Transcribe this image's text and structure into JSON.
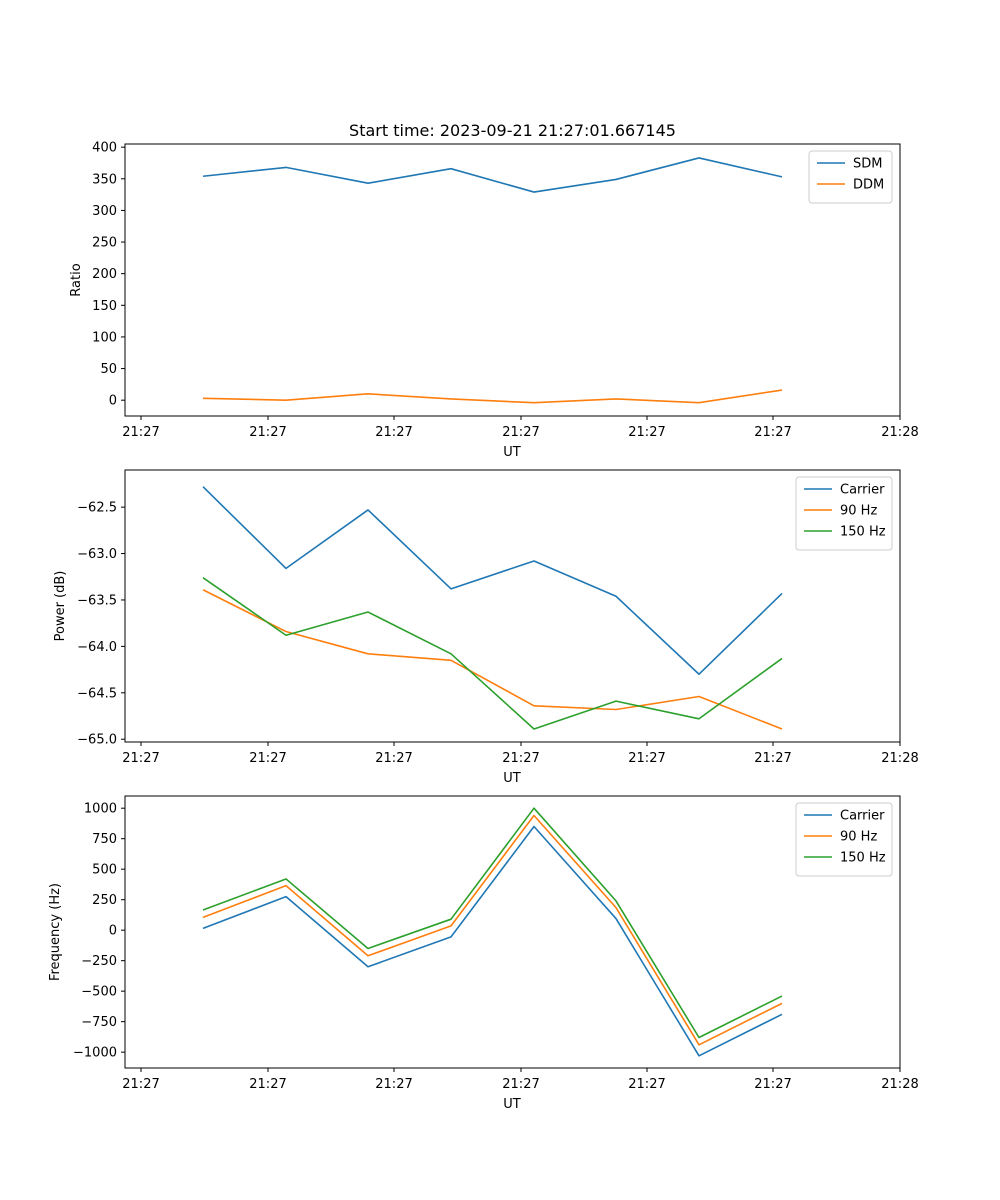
{
  "figure_title": "Start time: 2023-09-21 21:27:01.667145",
  "chart_data": [
    {
      "type": "line",
      "xlabel": "UT",
      "ylabel": "Ratio",
      "x_ticks": [
        "21:27",
        "21:27",
        "21:27",
        "21:27",
        "21:27",
        "21:27",
        "21:28"
      ],
      "y_ticks": [
        "0",
        "50",
        "100",
        "150",
        "200",
        "250",
        "300",
        "350",
        "400"
      ],
      "y_tick_values": [
        0,
        50,
        100,
        150,
        200,
        250,
        300,
        350,
        400
      ],
      "ylim": [
        -25,
        405
      ],
      "legend_position": "upper right",
      "series": [
        {
          "name": "SDM",
          "color": "#1f77b4",
          "values": [
            354,
            368,
            343,
            366,
            329,
            349,
            383,
            353
          ]
        },
        {
          "name": "DDM",
          "color": "#ff7f0e",
          "values": [
            3,
            0,
            10,
            2,
            -4,
            2,
            -4,
            16
          ]
        }
      ]
    },
    {
      "type": "line",
      "xlabel": "UT",
      "ylabel": "Power (dB)",
      "x_ticks": [
        "21:27",
        "21:27",
        "21:27",
        "21:27",
        "21:27",
        "21:27",
        "21:28"
      ],
      "y_ticks": [
        "−65.0",
        "−64.5",
        "−64.0",
        "−63.5",
        "−63.0",
        "−62.5"
      ],
      "y_tick_values": [
        -65.0,
        -64.5,
        -64.0,
        -63.5,
        -63.0,
        -62.5
      ],
      "ylim": [
        -65.03,
        -62.1
      ],
      "legend_position": "upper right",
      "series": [
        {
          "name": "Carrier",
          "color": "#1f77b4",
          "values": [
            -62.28,
            -63.16,
            -62.53,
            -63.38,
            -63.08,
            -63.46,
            -64.3,
            -63.43
          ]
        },
        {
          "name": "90 Hz",
          "color": "#ff7f0e",
          "values": [
            -63.39,
            -63.84,
            -64.08,
            -64.15,
            -64.64,
            -64.68,
            -64.54,
            -64.89
          ]
        },
        {
          "name": "150 Hz",
          "color": "#2ca02c",
          "values": [
            -63.26,
            -63.88,
            -63.63,
            -64.08,
            -64.89,
            -64.59,
            -64.78,
            -64.13
          ]
        }
      ]
    },
    {
      "type": "line",
      "xlabel": "UT",
      "ylabel": "Frequency (Hz)",
      "x_ticks": [
        "21:27",
        "21:27",
        "21:27",
        "21:27",
        "21:27",
        "21:27",
        "21:28"
      ],
      "y_ticks": [
        "−1000",
        "−750",
        "−500",
        "−250",
        "0",
        "250",
        "500",
        "750",
        "1000"
      ],
      "y_tick_values": [
        -1000,
        -750,
        -500,
        -250,
        0,
        250,
        500,
        750,
        1000
      ],
      "ylim": [
        -1130,
        1100
      ],
      "legend_position": "upper right",
      "series": [
        {
          "name": "Carrier",
          "color": "#1f77b4",
          "values": [
            15,
            275,
            -300,
            -55,
            850,
            95,
            -1030,
            -690
          ]
        },
        {
          "name": "90 Hz",
          "color": "#ff7f0e",
          "values": [
            105,
            365,
            -210,
            35,
            940,
            185,
            -940,
            -600
          ]
        },
        {
          "name": "150 Hz",
          "color": "#2ca02c",
          "values": [
            165,
            420,
            -150,
            90,
            1000,
            240,
            -880,
            -540
          ]
        }
      ]
    }
  ]
}
